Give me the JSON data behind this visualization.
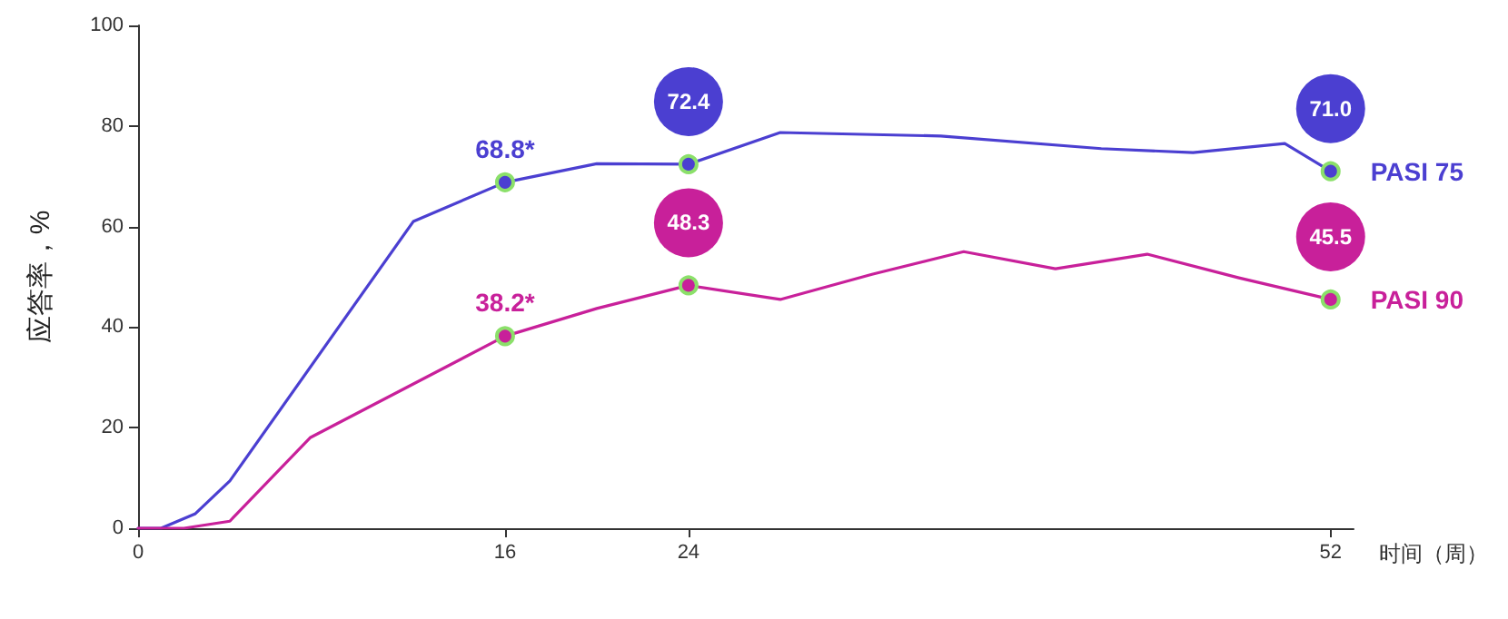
{
  "chart_data": {
    "type": "line",
    "xlabel": "时间（周）",
    "ylabel": "应答率，%",
    "xlim": [
      0,
      53
    ],
    "xticks": [
      0,
      16,
      24,
      52
    ],
    "ylim": [
      0,
      100
    ],
    "yticks": [
      0,
      20,
      40,
      60,
      80,
      100
    ],
    "grid": false,
    "legend": false,
    "series": [
      {
        "name": "PASI 75",
        "color": "#4b3fd1",
        "x": [
          0,
          1,
          2.5,
          4,
          12,
          16,
          20,
          24,
          28,
          35,
          42,
          46,
          50,
          52
        ],
        "values": [
          0,
          0,
          2.9,
          9.4,
          61,
          68.8,
          72.5,
          72.4,
          78.7,
          78,
          75.5,
          74.7,
          76.5,
          71.0
        ],
        "value_labels": [
          null,
          null,
          null,
          null,
          null,
          "68.8*",
          null,
          "72.4",
          null,
          null,
          null,
          null,
          null,
          "71.0"
        ]
      },
      {
        "name": "PASI 90",
        "color": "#c8209a",
        "x": [
          0,
          2,
          4,
          7.5,
          16,
          20,
          24,
          28,
          32,
          36,
          40,
          44,
          48,
          52
        ],
        "values": [
          0,
          0,
          1.4,
          18,
          38.2,
          43.7,
          48.3,
          45.5,
          50.5,
          55,
          51.6,
          54.5,
          49.8,
          45.5
        ],
        "value_labels": [
          null,
          null,
          null,
          null,
          "38.2*",
          null,
          "48.3",
          null,
          null,
          null,
          null,
          null,
          null,
          "45.5"
        ]
      }
    ]
  }
}
